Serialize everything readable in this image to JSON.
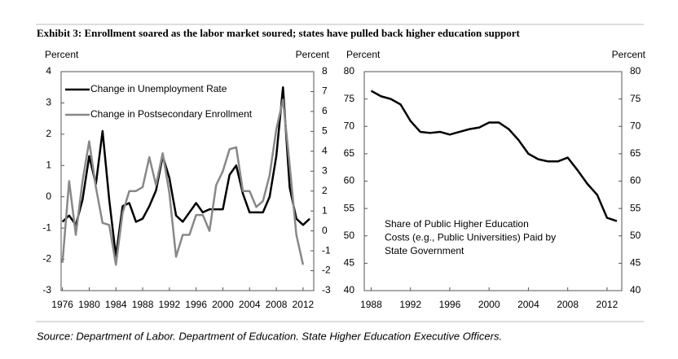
{
  "title": "Exhibit 3: Enrollment soared as the labor market soured; states have pulled back higher education support",
  "source": "Source: Department of Labor. Department of Education. State Higher Education Executive Officers.",
  "chart_data": [
    {
      "type": "line",
      "ylabel": "Percent",
      "y2label": "Percent",
      "x": [
        1976,
        1977,
        1978,
        1979,
        1980,
        1981,
        1982,
        1983,
        1984,
        1985,
        1986,
        1987,
        1988,
        1989,
        1990,
        1991,
        1992,
        1993,
        1994,
        1995,
        1996,
        1997,
        1998,
        1999,
        2000,
        2001,
        2002,
        2003,
        2004,
        2005,
        2006,
        2007,
        2008,
        2009,
        2010,
        2011,
        2012,
        2013
      ],
      "xlim": [
        1975.8,
        2013.6
      ],
      "xticks": [
        1976,
        1980,
        1984,
        1988,
        1992,
        1996,
        2000,
        2004,
        2008,
        2012
      ],
      "ylim": [
        -3,
        4
      ],
      "yticks": [
        -3,
        -2,
        -1,
        0,
        1,
        2,
        3,
        4
      ],
      "y2lim": [
        -3,
        8
      ],
      "y2ticks": [
        -3,
        -2,
        -1,
        0,
        1,
        2,
        3,
        4,
        5,
        6,
        7,
        8
      ],
      "legend": "upper left",
      "series": [
        {
          "name": "Change in Unemployment Rate",
          "color": "#000000",
          "values": [
            -0.8,
            -0.6,
            -0.9,
            -0.1,
            1.3,
            0.4,
            2.1,
            -0.1,
            -1.9,
            -0.3,
            -0.2,
            -0.8,
            -0.7,
            -0.3,
            0.2,
            1.3,
            0.6,
            -0.6,
            -0.8,
            -0.5,
            -0.2,
            -0.5,
            -0.4,
            -0.4,
            -0.4,
            0.7,
            1.0,
            0.1,
            -0.5,
            -0.5,
            -0.5,
            0.0,
            1.3,
            3.5,
            0.3,
            -0.7,
            -0.9,
            -0.7
          ]
        },
        {
          "name": "Change in Postsecondary Enrollment",
          "color": "#888888",
          "axis": "y2",
          "values": [
            -1.6,
            2.5,
            -0.2,
            2.5,
            4.5,
            2.2,
            0.4,
            0.3,
            -1.7,
            0.9,
            2.0,
            2.0,
            2.2,
            3.7,
            2.3,
            3.9,
            1.9,
            -1.3,
            -0.2,
            -0.2,
            0.8,
            0.8,
            0.0,
            2.3,
            3.0,
            4.1,
            4.2,
            2.0,
            2.0,
            1.2,
            1.5,
            2.8,
            5.1,
            6.6,
            3.3,
            -0.2,
            -1.7,
            null
          ]
        }
      ]
    },
    {
      "type": "line",
      "ylabel": "Percent",
      "y2label": "Percent",
      "x": [
        1988,
        1989,
        1990,
        1991,
        1992,
        1993,
        1994,
        1995,
        1996,
        1997,
        1998,
        1999,
        2000,
        2001,
        2002,
        2003,
        2004,
        2005,
        2006,
        2007,
        2008,
        2009,
        2010,
        2011,
        2012,
        2013
      ],
      "xlim": [
        1987.3,
        2013.5
      ],
      "xticks": [
        1988,
        1992,
        1996,
        2000,
        2004,
        2008,
        2012
      ],
      "ylim": [
        40,
        80
      ],
      "yticks": [
        40,
        45,
        50,
        55,
        60,
        65,
        70,
        75,
        80
      ],
      "y2lim": [
        40,
        80
      ],
      "y2ticks": [
        40,
        45,
        50,
        55,
        60,
        65,
        70,
        75,
        80
      ],
      "color": "#000000",
      "values": [
        76.5,
        75.5,
        75,
        74,
        71,
        69,
        68.8,
        69,
        68.5,
        69,
        69.5,
        69.8,
        70.7,
        70.7,
        69.5,
        67.5,
        65,
        64,
        63.6,
        63.6,
        64.3,
        62,
        59.5,
        57.5,
        53.3,
        52.7
      ],
      "annotation": [
        "Share of Public Higher Education",
        "Costs (e.g., Public Universities) Paid by",
        "State Government"
      ]
    }
  ]
}
